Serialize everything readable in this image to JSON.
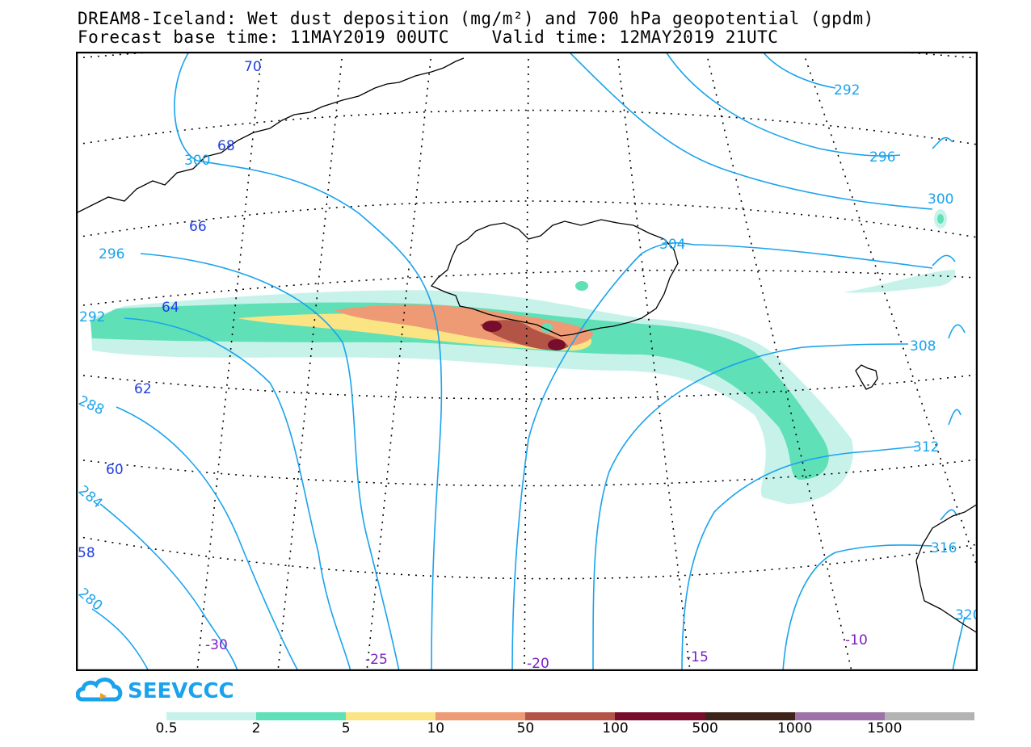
{
  "title_line1": "DREAM8-Iceland: Wet dust deposition (mg/m²) and 700 hPa geopotential (gpdm)",
  "title_line2": "Forecast base time: 11MAY2019 00UTC    Valid time: 12MAY2019 21UTC",
  "logo_text": "SEEVCCC",
  "colors": {
    "contour": "#1aa3ec",
    "lat_label": "#1f3fe0",
    "lon_label": "#7a1fc8",
    "coast": "#000000"
  },
  "contour_labels": [
    "70",
    "68",
    "300",
    "66",
    "296",
    "64",
    "292",
    "62",
    "288",
    "60",
    "284",
    "58",
    "280",
    "-30",
    "-25",
    "-20",
    "-15",
    "-10",
    "292",
    "296",
    "300",
    "304",
    "308",
    "312",
    "316",
    "320"
  ],
  "legend": {
    "labels": [
      "0.5",
      "2",
      "5",
      "10",
      "50",
      "100",
      "500",
      "1000",
      "1500"
    ],
    "colors": [
      "#c6f2ea",
      "#5fe0b6",
      "#fae484",
      "#ee9a75",
      "#b45447",
      "#780c2c",
      "#3d231a",
      "#9e72a8",
      "#b3b3b3"
    ]
  }
}
